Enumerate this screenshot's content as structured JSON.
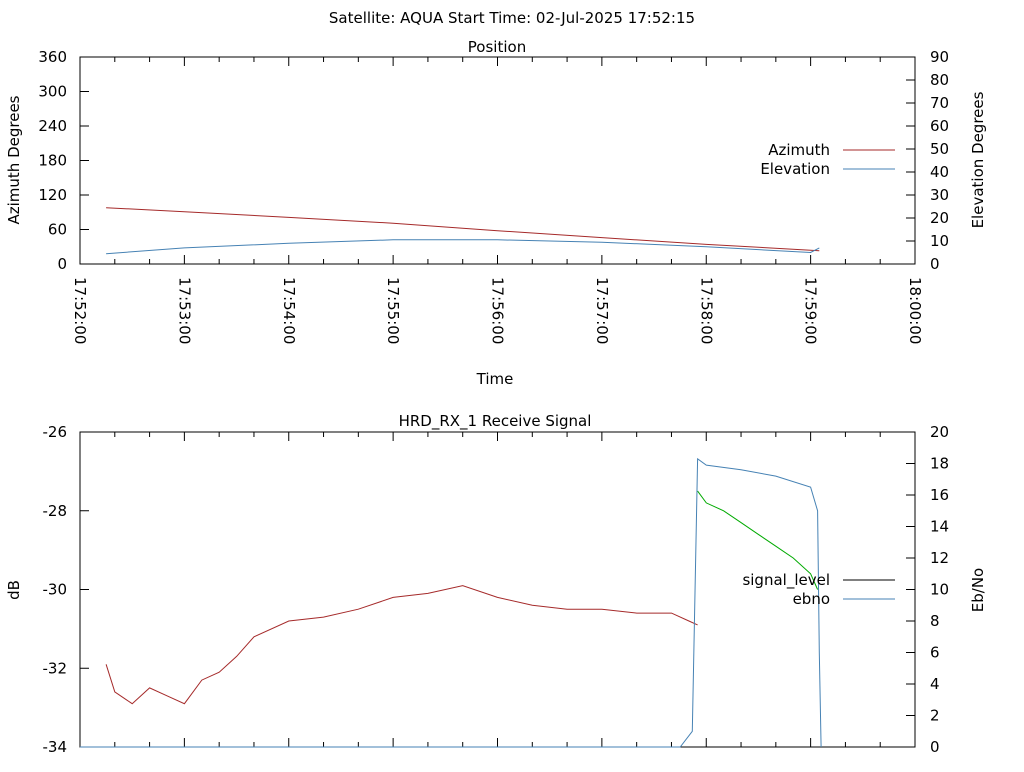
{
  "header": {
    "title": "Satellite: AQUA    Start Time: 02-Jul-2025 17:52:15"
  },
  "chart_data": [
    {
      "type": "line",
      "title": "Position",
      "xlabel": "Time",
      "ylabel": "Azimuth Degrees",
      "y2label": "Elevation Degrees",
      "xlim": [
        "17:52:00",
        "18:00:00"
      ],
      "ylim": [
        0,
        360
      ],
      "y2lim": [
        0,
        90
      ],
      "x_ticks": [
        "17:52:00",
        "17:53:00",
        "17:54:00",
        "17:55:00",
        "17:56:00",
        "17:57:00",
        "17:58:00",
        "17:59:00",
        "18:00:00"
      ],
      "y_ticks": [
        0,
        60,
        120,
        180,
        240,
        300,
        360
      ],
      "y2_ticks": [
        0,
        10,
        20,
        30,
        40,
        50,
        60,
        70,
        80,
        90
      ],
      "legend_position": "right",
      "series": [
        {
          "name": "Azimuth",
          "axis": "left",
          "color": "#a52a2a",
          "x": [
            "17:52:15",
            "17:53:00",
            "17:54:00",
            "17:55:00",
            "17:56:00",
            "17:57:00",
            "17:58:00",
            "17:59:00",
            "17:59:05"
          ],
          "values": [
            98,
            91,
            81,
            71,
            58,
            46,
            34,
            24,
            23
          ]
        },
        {
          "name": "Elevation",
          "axis": "right",
          "color": "#4682b4",
          "x": [
            "17:52:15",
            "17:53:00",
            "17:54:00",
            "17:55:00",
            "17:56:00",
            "17:57:00",
            "17:58:00",
            "17:59:00",
            "17:59:05"
          ],
          "values": [
            4.5,
            7,
            9,
            10.5,
            10.5,
            9.5,
            7.5,
            5,
            7
          ]
        }
      ]
    },
    {
      "type": "line",
      "title": "HRD_RX_1 Receive Signal",
      "xlabel": "",
      "ylabel": "dB",
      "y2label": "Eb/No",
      "xlim": [
        "17:52:00",
        "18:00:00"
      ],
      "ylim": [
        -34,
        -26
      ],
      "y2lim": [
        0,
        20
      ],
      "y_ticks": [
        -34,
        -32,
        -30,
        -28,
        -26
      ],
      "y2_ticks": [
        0,
        2,
        4,
        6,
        8,
        10,
        12,
        14,
        16,
        18,
        20
      ],
      "legend_position": "right",
      "series": [
        {
          "name": "signal_level",
          "axis": "left",
          "color": "#a52a2a",
          "legend_color": "#000000",
          "x": [
            "17:52:15",
            "17:52:20",
            "17:52:30",
            "17:52:40",
            "17:52:50",
            "17:53:00",
            "17:53:10",
            "17:53:20",
            "17:53:30",
            "17:53:40",
            "17:54:00",
            "17:54:20",
            "17:54:40",
            "17:55:00",
            "17:55:20",
            "17:55:40",
            "17:56:00",
            "17:56:20",
            "17:56:40",
            "17:57:00",
            "17:57:20",
            "17:57:40",
            "17:57:50",
            "17:57:55"
          ],
          "values": [
            -31.9,
            -32.6,
            -32.9,
            -32.5,
            -32.7,
            -32.9,
            -32.3,
            -32.1,
            -31.7,
            -31.2,
            -30.8,
            -30.7,
            -30.5,
            -30.2,
            -30.1,
            -29.9,
            -30.2,
            -30.4,
            -30.5,
            -30.5,
            -30.6,
            -30.6,
            -30.8,
            -30.9
          ]
        },
        {
          "name": "signal_level",
          "legend": false,
          "axis": "left",
          "color": "#00aa00",
          "x": [
            "17:57:55",
            "17:58:00",
            "17:58:10",
            "17:58:20",
            "17:58:30",
            "17:58:40",
            "17:58:50",
            "17:59:00",
            "17:59:04"
          ],
          "values": [
            -27.5,
            -27.8,
            -28.0,
            -28.3,
            -28.6,
            -28.9,
            -29.2,
            -29.6,
            -30.0
          ]
        },
        {
          "name": "ebno",
          "axis": "right",
          "color": "#4682b4",
          "x": [
            "17:52:00",
            "17:57:00",
            "17:57:45",
            "17:57:52",
            "17:57:55",
            "17:58:00",
            "17:58:20",
            "17:58:40",
            "17:59:00",
            "17:59:04",
            "17:59:05",
            "17:59:06"
          ],
          "values": [
            0,
            0,
            0,
            1,
            18.3,
            17.9,
            17.6,
            17.2,
            16.5,
            15.0,
            6,
            0
          ]
        }
      ]
    }
  ]
}
